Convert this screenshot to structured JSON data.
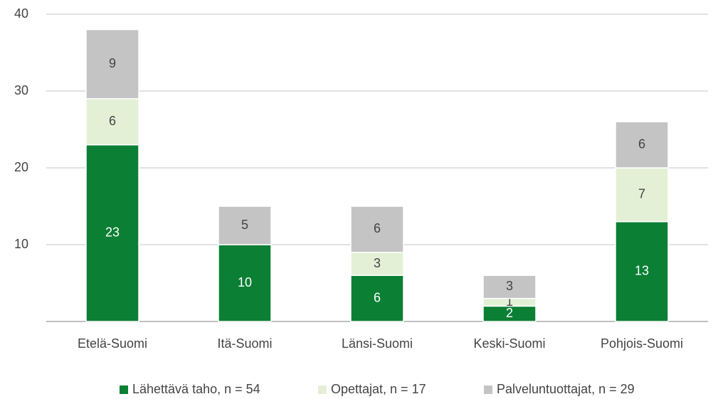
{
  "chart_data": {
    "type": "stacked_bar",
    "categories": [
      "Etelä-Suomi",
      "Itä-Suomi",
      "Länsi-Suomi",
      "Keski-Suomi",
      "Pohjois-Suomi"
    ],
    "series": [
      {
        "name": "Lähettävä taho, n = 54",
        "color": "#0b7f34",
        "label_color": "#ffffff",
        "values": [
          23,
          10,
          6,
          2,
          13
        ]
      },
      {
        "name": "Opettajat, n = 17",
        "color": "#e3f0d6",
        "label_color": "#444444",
        "values": [
          6,
          null,
          3,
          1,
          7
        ]
      },
      {
        "name": "Palveluntuottajat, n = 29",
        "color": "#c4c4c4",
        "label_color": "#444444",
        "values": [
          9,
          5,
          6,
          3,
          6
        ]
      }
    ],
    "ylim": [
      0,
      40
    ],
    "yticks": [
      10,
      20,
      30,
      40
    ],
    "grid": true,
    "legend": "bottom"
  }
}
